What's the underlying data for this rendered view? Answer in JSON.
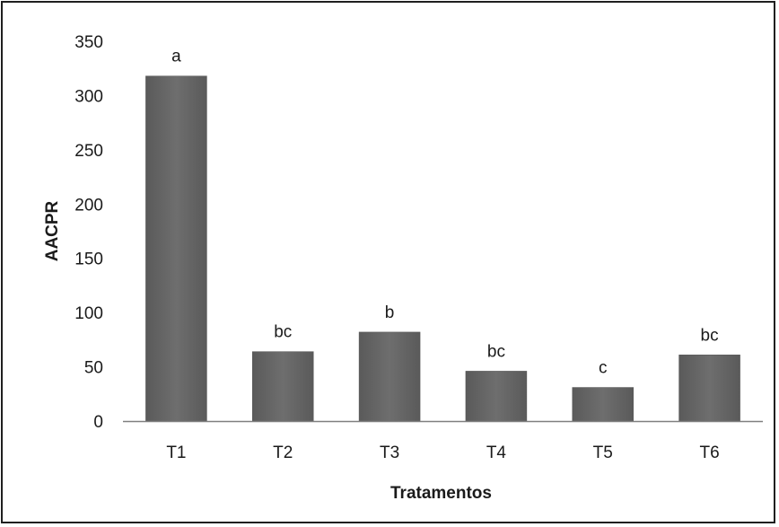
{
  "chart_data": {
    "type": "bar",
    "title": "",
    "xlabel": "Tratamentos",
    "ylabel": "AACPR",
    "categories": [
      "T1",
      "T2",
      "T3",
      "T4",
      "T5",
      "T6"
    ],
    "values": [
      318,
      64,
      82,
      46,
      31,
      61
    ],
    "data_labels": [
      "a",
      "bc",
      "b",
      "bc",
      "c",
      "bc"
    ],
    "ylim": [
      0,
      350
    ],
    "yticks": [
      0,
      50,
      100,
      150,
      200,
      250,
      300,
      350
    ],
    "grid": false,
    "legend": "none",
    "bar_color": "#6b6b6b"
  }
}
